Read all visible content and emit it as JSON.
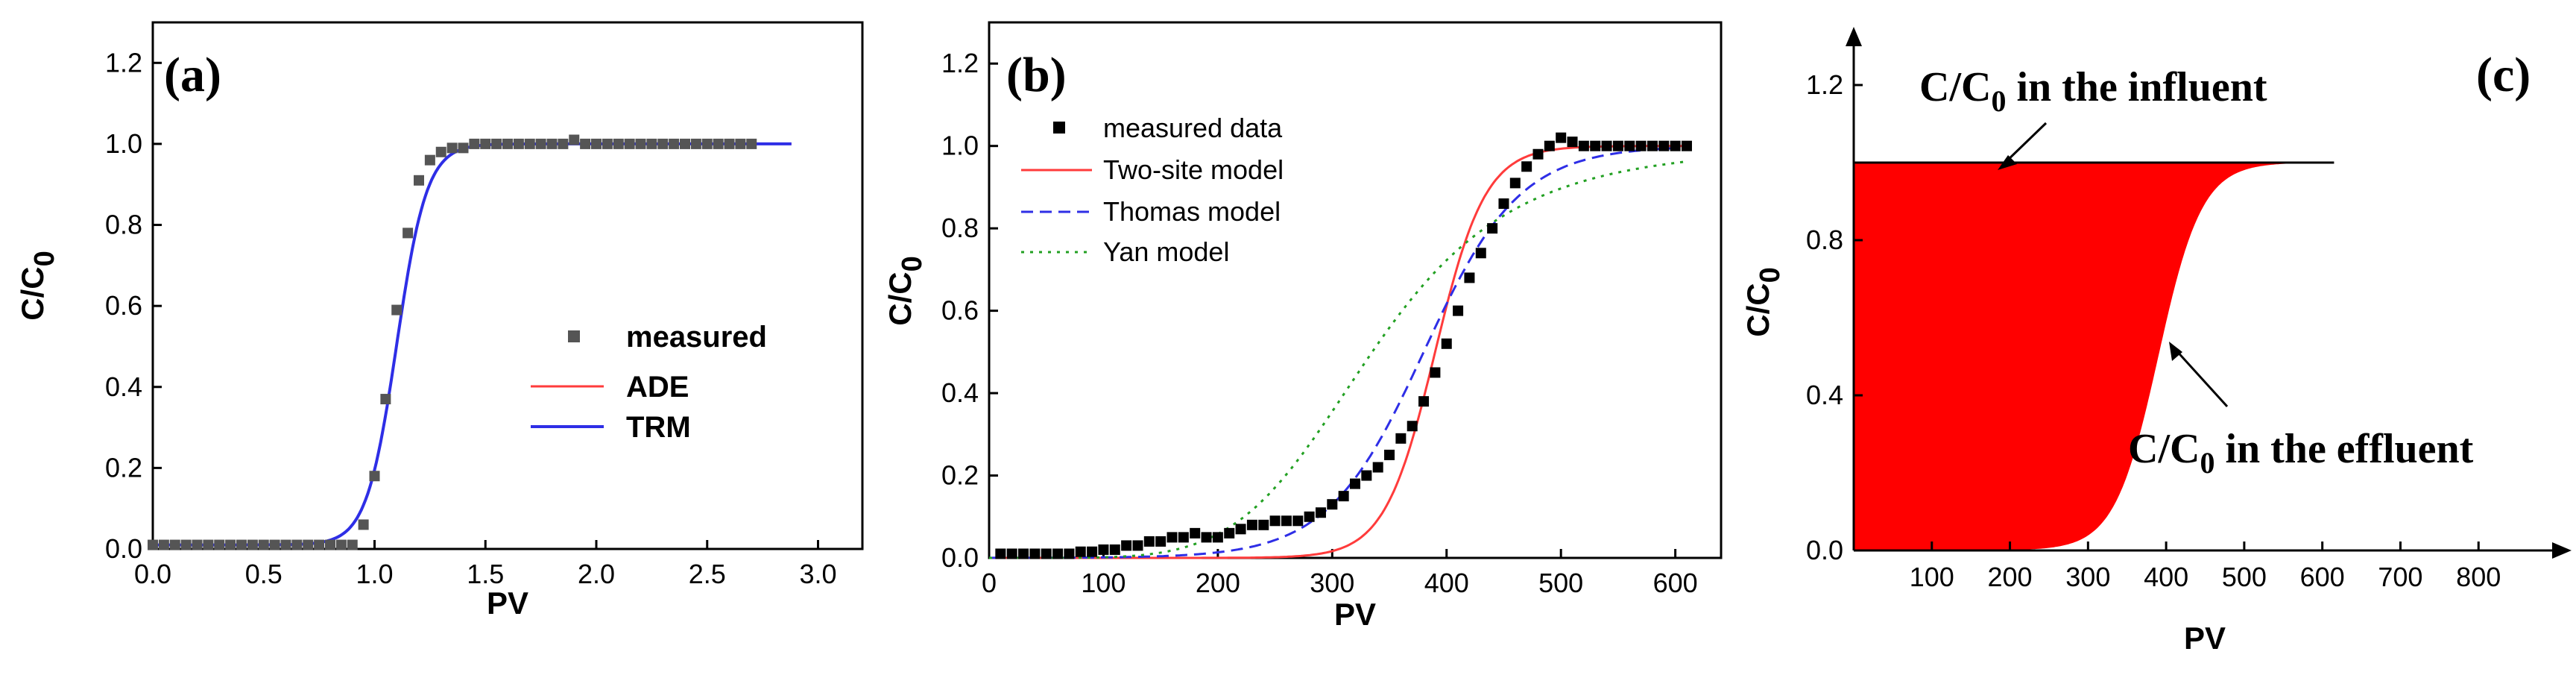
{
  "chart_data": [
    {
      "panel": "(a)",
      "type": "line",
      "xlabel": "PV",
      "ylabel": "C/C",
      "ylabel_sub": "0",
      "xlim": [
        0,
        3.2
      ],
      "ylim": [
        0,
        1.3
      ],
      "xticks": [
        "0.0",
        "0.5",
        "1.0",
        "1.5",
        "2.0",
        "2.5",
        "3.0"
      ],
      "yticks": [
        "0.0",
        "0.2",
        "0.4",
        "0.6",
        "0.8",
        "1.0",
        "1.2"
      ],
      "legend": [
        "measured",
        "ADE",
        "TRM"
      ],
      "series": [
        {
          "name": "measured",
          "style": "markers",
          "x": [
            0.0,
            0.05,
            0.1,
            0.15,
            0.2,
            0.25,
            0.3,
            0.35,
            0.4,
            0.45,
            0.5,
            0.55,
            0.6,
            0.65,
            0.7,
            0.75,
            0.8,
            0.85,
            0.9,
            0.95,
            1.0,
            1.05,
            1.1,
            1.15,
            1.2,
            1.25,
            1.3,
            1.35,
            1.4,
            1.45,
            1.5,
            1.55,
            1.6,
            1.65,
            1.7,
            1.75,
            1.8,
            1.85,
            1.9,
            1.95,
            2.0,
            2.05,
            2.1,
            2.15,
            2.2,
            2.25,
            2.3,
            2.35,
            2.4,
            2.45,
            2.5,
            2.55,
            2.6,
            2.65,
            2.7
          ],
          "y": [
            0.01,
            0.01,
            0.01,
            0.01,
            0.01,
            0.01,
            0.01,
            0.01,
            0.01,
            0.01,
            0.01,
            0.01,
            0.01,
            0.01,
            0.01,
            0.01,
            0.01,
            0.01,
            0.01,
            0.06,
            0.18,
            0.37,
            0.59,
            0.78,
            0.91,
            0.96,
            0.98,
            0.99,
            0.99,
            1.0,
            1.0,
            1.0,
            1.0,
            1.0,
            1.0,
            1.0,
            1.0,
            1.0,
            1.01,
            1.0,
            1.0,
            1.0,
            1.0,
            1.0,
            1.0,
            1.0,
            1.0,
            1.0,
            1.0,
            1.0,
            1.0,
            1.0,
            1.0,
            1.0,
            1.0
          ]
        },
        {
          "name": "ADE",
          "style": "solid",
          "color": "#ff3b3b",
          "model": {
            "kind": "logistic",
            "mid": 1.1,
            "scale": 0.068,
            "x0": 0.0,
            "x1": 2.88,
            "top": 1.0,
            "base": 0.01
          }
        },
        {
          "name": "TRM",
          "style": "solid",
          "color": "#2e2ee6",
          "model": {
            "kind": "logistic",
            "mid": 1.1,
            "scale": 0.068,
            "x0": 0.0,
            "x1": 2.88,
            "top": 1.0,
            "base": 0.01
          }
        }
      ]
    },
    {
      "panel": "(b)",
      "type": "line",
      "xlabel": "PV",
      "ylabel": "C/C",
      "ylabel_sub": "0",
      "xlim": [
        0,
        640
      ],
      "ylim": [
        0,
        1.3
      ],
      "xticks": [
        "0",
        "100",
        "200",
        "300",
        "400",
        "500",
        "600"
      ],
      "yticks": [
        "0.0",
        "0.2",
        "0.4",
        "0.6",
        "0.8",
        "1.0",
        "1.2"
      ],
      "legend": [
        "measured data",
        "Two-site model",
        "Thomas model",
        "Yan model"
      ],
      "series": [
        {
          "name": "measured data",
          "style": "markers",
          "x": [
            10,
            20,
            30,
            40,
            50,
            60,
            70,
            80,
            90,
            100,
            110,
            120,
            130,
            140,
            150,
            160,
            170,
            180,
            190,
            200,
            210,
            220,
            230,
            240,
            250,
            260,
            270,
            280,
            290,
            300,
            310,
            320,
            330,
            340,
            350,
            360,
            370,
            380,
            390,
            400,
            410,
            420,
            430,
            440,
            450,
            460,
            470,
            480,
            490,
            500,
            510,
            520,
            530,
            540,
            550,
            560,
            570,
            580,
            590,
            600,
            610
          ],
          "y": [
            0.01,
            0.01,
            0.01,
            0.01,
            0.01,
            0.01,
            0.01,
            0.015,
            0.015,
            0.02,
            0.02,
            0.03,
            0.03,
            0.04,
            0.04,
            0.05,
            0.05,
            0.06,
            0.05,
            0.05,
            0.06,
            0.07,
            0.08,
            0.08,
            0.09,
            0.09,
            0.09,
            0.1,
            0.11,
            0.13,
            0.15,
            0.18,
            0.2,
            0.22,
            0.25,
            0.29,
            0.32,
            0.38,
            0.45,
            0.52,
            0.6,
            0.68,
            0.74,
            0.8,
            0.86,
            0.91,
            0.95,
            0.98,
            1.0,
            1.02,
            1.01,
            1.0,
            1.0,
            1.0,
            1.0,
            1.0,
            1.0,
            1.0,
            1.0,
            1.0,
            1.0
          ]
        },
        {
          "name": "Two-site model",
          "style": "solid",
          "color": "#ff3b3b",
          "model": {
            "kind": "logistic",
            "mid": 390,
            "scale": 22,
            "x0": 0,
            "x1": 610,
            "top": 1.0,
            "base": 0.0
          }
        },
        {
          "name": "Thomas model",
          "style": "dashed",
          "color": "#2e2ee6",
          "model": {
            "kind": "logistic",
            "mid": 380,
            "scale": 42,
            "x0": 0,
            "x1": 610,
            "top": 1.0,
            "base": 0.0
          }
        },
        {
          "name": "Yan model",
          "style": "dotted",
          "color": "#22a022",
          "model": {
            "kind": "hill",
            "k": 335,
            "n": 5.4,
            "x0": 0,
            "x1": 610
          }
        }
      ]
    },
    {
      "panel": "(c)",
      "type": "area",
      "xlabel": "PV",
      "ylabel": "C/C",
      "ylabel_sub": "0",
      "xlim": [
        0,
        900
      ],
      "ylim": [
        0,
        1.35
      ],
      "xticks": [
        "100",
        "200",
        "300",
        "400",
        "500",
        "600",
        "700",
        "800"
      ],
      "yticks": [
        "0.0",
        "0.4",
        "0.8",
        "1.2"
      ],
      "fill_color": "#ff0000",
      "influent_level": 1.0,
      "effluent_model": {
        "kind": "logistic",
        "mid": 390,
        "scale": 28,
        "x0": 0,
        "x1": 615,
        "top": 1.0,
        "base": 0.0
      },
      "annotations": {
        "influent": {
          "text": "C/C",
          "sub": "0",
          "rest": " in the influent"
        },
        "effluent": {
          "text": "C/C",
          "sub": "0",
          "rest": " in the effluent"
        }
      }
    }
  ]
}
